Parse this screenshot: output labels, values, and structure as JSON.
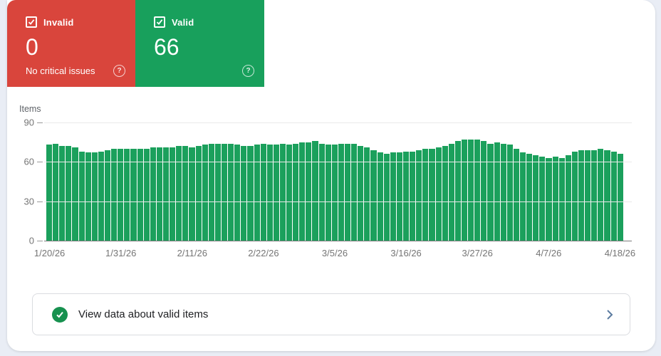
{
  "summary": {
    "invalid": {
      "label": "Invalid",
      "value": "0",
      "subtitle": "No critical issues"
    },
    "valid": {
      "label": "Valid",
      "value": "66"
    }
  },
  "icons": {
    "help_glyph": "?",
    "checkbox_state": "checked",
    "footer_icon": "check-circle",
    "chevron": "chevron-right"
  },
  "colors": {
    "invalid_card": "#D9453C",
    "valid_card": "#18A05C",
    "bar": "#1BA05C",
    "check_circle": "#17914F",
    "chevron": "#5B7BA0",
    "axis_text": "#757575"
  },
  "chart_data": {
    "type": "bar",
    "title": "Items",
    "ylabel": "Items",
    "xlabel": "",
    "ylim": [
      0,
      90
    ],
    "yticks": [
      0,
      30,
      60,
      90
    ],
    "grid": true,
    "legend": "none",
    "x_tick_labels": [
      "1/20/26",
      "1/31/26",
      "2/11/26",
      "2/22/26",
      "3/5/26",
      "3/16/26",
      "3/27/26",
      "4/7/26",
      "4/18/26"
    ],
    "x_tick_positions": [
      0,
      11,
      22,
      33,
      44,
      55,
      66,
      77,
      88
    ],
    "values": [
      73,
      74,
      72,
      72,
      71,
      68,
      67,
      67,
      68,
      69,
      70,
      70,
      70,
      70,
      70,
      70,
      71,
      71,
      71,
      71,
      72,
      72,
      71,
      72,
      73,
      74,
      74,
      74,
      74,
      73,
      72,
      72,
      73,
      74,
      73,
      73,
      74,
      73,
      74,
      75,
      75,
      76,
      74,
      73,
      73,
      74,
      74,
      74,
      72,
      71,
      69,
      67,
      66,
      67,
      67,
      68,
      68,
      69,
      70,
      70,
      71,
      72,
      74,
      76,
      77,
      77,
      77,
      76,
      74,
      75,
      74,
      73,
      70,
      67,
      66,
      65,
      64,
      63,
      64,
      63,
      65,
      68,
      69,
      69,
      69,
      70,
      69,
      68,
      66
    ]
  },
  "footer": {
    "text": "View data about valid items"
  }
}
